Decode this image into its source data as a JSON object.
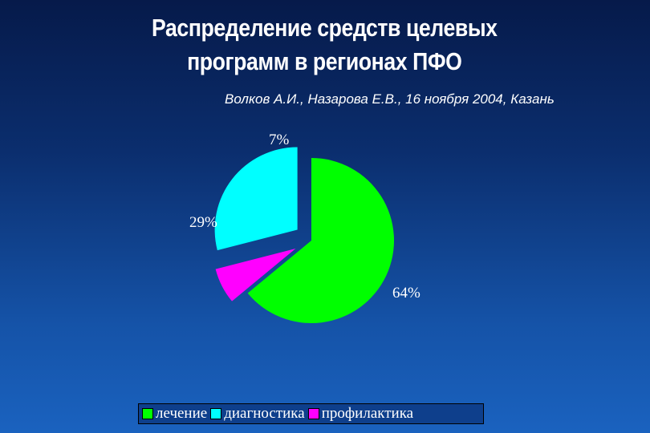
{
  "title": {
    "line1": "Распределение средств целевых",
    "line2": "программ в регионах ПФО"
  },
  "subtitle": "Волков А.И., Назарова Е.В., 16 ноября  2004, Казань",
  "chart_data": {
    "type": "pie",
    "exploded": true,
    "legend_position": "bottom",
    "slices": [
      {
        "name": "лечение",
        "value": 64,
        "label": "64%",
        "color": "#00ff00"
      },
      {
        "name": "профилактика",
        "value": 7,
        "label": "7%",
        "color": "#ff00ff"
      },
      {
        "name": "диагностика",
        "value": 29,
        "label": "29%",
        "color": "#00ffff"
      }
    ],
    "legend": [
      "лечение",
      "диагностика",
      "профилактика"
    ]
  }
}
